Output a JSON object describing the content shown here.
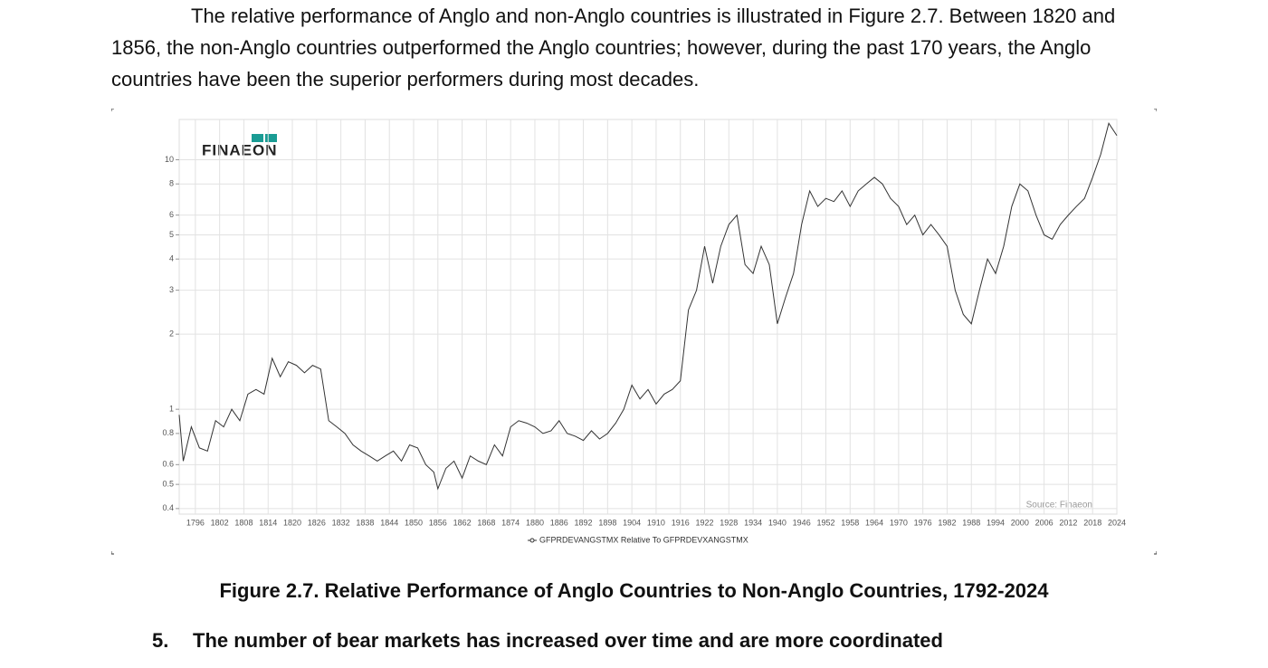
{
  "paragraph": "The relative performance of Anglo and non-Anglo countries is illustrated in Figure 2.7.  Between 1820 and 1856, the non-Anglo countries outperformed the Anglo countries; however, during the past 170 years, the Anglo countries have been the superior performers during most decades.",
  "chart_data": {
    "type": "line",
    "logo": "FINAEON",
    "source": "Source: Finaeon",
    "x": [
      1792,
      1793,
      1795,
      1797,
      1799,
      1801,
      1803,
      1805,
      1807,
      1809,
      1811,
      1813,
      1815,
      1817,
      1819,
      1821,
      1823,
      1825,
      1827,
      1829,
      1831,
      1833,
      1835,
      1837,
      1839,
      1841,
      1843,
      1845,
      1847,
      1849,
      1851,
      1853,
      1855,
      1856,
      1858,
      1860,
      1862,
      1864,
      1866,
      1868,
      1870,
      1872,
      1874,
      1876,
      1878,
      1880,
      1882,
      1884,
      1886,
      1888,
      1890,
      1892,
      1894,
      1896,
      1898,
      1900,
      1902,
      1904,
      1906,
      1908,
      1910,
      1912,
      1914,
      1916,
      1918,
      1920,
      1922,
      1924,
      1926,
      1928,
      1930,
      1932,
      1934,
      1936,
      1938,
      1940,
      1942,
      1944,
      1946,
      1948,
      1950,
      1952,
      1954,
      1956,
      1958,
      1960,
      1962,
      1964,
      1966,
      1968,
      1970,
      1972,
      1974,
      1976,
      1978,
      1980,
      1982,
      1984,
      1986,
      1988,
      1990,
      1992,
      1994,
      1996,
      1998,
      2000,
      2002,
      2004,
      2006,
      2008,
      2010,
      2012,
      2014,
      2016,
      2018,
      2020,
      2022,
      2024
    ],
    "series": [
      {
        "name": "GFPRDEVANGSTMX Relative To GFPRDEVXANGSTMX",
        "color": "#333333",
        "values": [
          0.95,
          0.62,
          0.85,
          0.7,
          0.68,
          0.9,
          0.85,
          1.0,
          0.9,
          1.15,
          1.2,
          1.15,
          1.6,
          1.35,
          1.55,
          1.5,
          1.4,
          1.5,
          1.45,
          0.9,
          0.85,
          0.8,
          0.72,
          0.68,
          0.65,
          0.62,
          0.65,
          0.68,
          0.62,
          0.72,
          0.7,
          0.6,
          0.56,
          0.48,
          0.58,
          0.62,
          0.53,
          0.65,
          0.62,
          0.6,
          0.72,
          0.65,
          0.85,
          0.9,
          0.88,
          0.85,
          0.8,
          0.82,
          0.9,
          0.8,
          0.78,
          0.75,
          0.82,
          0.76,
          0.8,
          0.88,
          1.0,
          1.25,
          1.1,
          1.2,
          1.05,
          1.15,
          1.2,
          1.3,
          2.5,
          3.0,
          4.5,
          3.2,
          4.5,
          5.5,
          6.0,
          3.8,
          3.5,
          4.5,
          3.8,
          2.2,
          2.8,
          3.5,
          5.5,
          7.5,
          6.5,
          7.0,
          6.8,
          7.5,
          6.5,
          7.5,
          8.0,
          8.5,
          8.0,
          7.0,
          6.5,
          5.5,
          6.0,
          5.0,
          5.5,
          5.0,
          4.5,
          3.0,
          2.4,
          2.2,
          3.0,
          4.0,
          3.5,
          4.5,
          6.5,
          8.0,
          7.5,
          6.0,
          5.0,
          4.8,
          5.5,
          6.0,
          6.5,
          7.0,
          8.5,
          10.5,
          14.0,
          12.5
        ]
      }
    ],
    "xlim": [
      1792,
      2024
    ],
    "xticks": [
      1796,
      1802,
      1808,
      1814,
      1820,
      1826,
      1832,
      1838,
      1844,
      1850,
      1856,
      1862,
      1868,
      1874,
      1880,
      1886,
      1892,
      1898,
      1904,
      1910,
      1916,
      1922,
      1928,
      1934,
      1940,
      1946,
      1952,
      1958,
      1964,
      1970,
      1976,
      1982,
      1988,
      1994,
      2000,
      2006,
      2012,
      2018,
      2024
    ],
    "ylim": [
      0.38,
      14.5
    ],
    "yticks": [
      0.4,
      0.5,
      0.6,
      0.8,
      1,
      2,
      3,
      4,
      5,
      6,
      8,
      10
    ],
    "yscale": "log",
    "grid": true
  },
  "caption": "Figure 2.7. Relative Performance of Anglo Countries to Non-Anglo Countries, 1792-2024",
  "heading": {
    "number": "5.",
    "text": "The number of bear markets has increased over time and are more coordinated"
  }
}
